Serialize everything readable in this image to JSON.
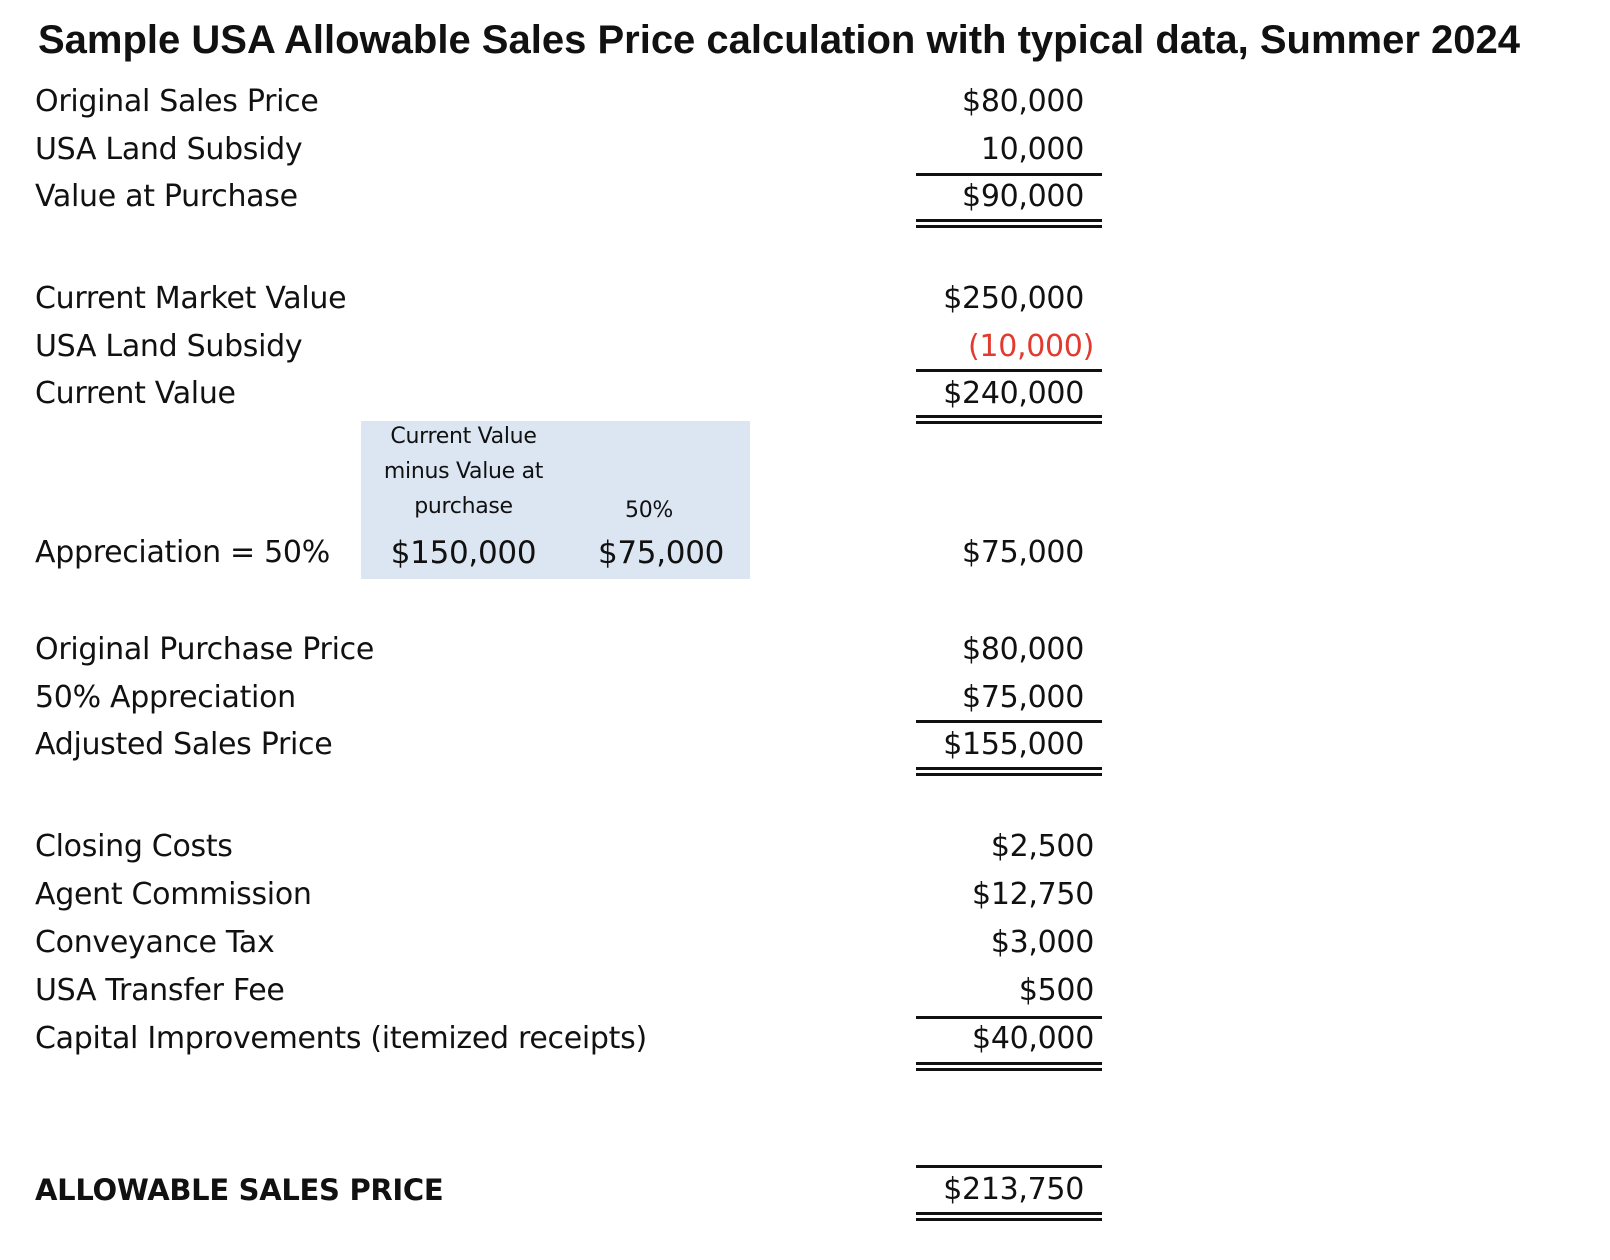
{
  "title": "Sample USA Allowable Sales Price calculation with typical data, Summer 2024",
  "purchase": {
    "original_sales_price": {
      "label": "Original Sales Price",
      "value": "$80,000"
    },
    "land_subsidy": {
      "label": "USA Land Subsidy",
      "value": "10,000"
    },
    "value_at_purchase": {
      "label": "Value at Purchase",
      "value": "$90,000"
    }
  },
  "current": {
    "market_value": {
      "label": "Current Market Value",
      "value": "$250,000"
    },
    "land_subsidy": {
      "label": "USA Land Subsidy",
      "value": "(10,000)"
    },
    "current_value": {
      "label": "Current Value",
      "value": "$240,000"
    }
  },
  "appreciation": {
    "label": "Appreciation = 50%",
    "box": {
      "difference_header": [
        "Current Value",
        "minus Value at",
        "purchase"
      ],
      "difference_value": "$150,000",
      "percent_header": "50%",
      "percent_value": "$75,000"
    },
    "value": "$75,000"
  },
  "adjusted": {
    "original_purchase_price": {
      "label": "Original Purchase Price",
      "value": "$80,000"
    },
    "appreciation_50": {
      "label": "50% Appreciation",
      "value": "$75,000"
    },
    "adjusted_sales_price": {
      "label": "Adjusted Sales Price",
      "value": "$155,000"
    }
  },
  "costs": [
    {
      "label": "Closing Costs",
      "value": "$2,500"
    },
    {
      "label": "Agent Commission",
      "value": "$12,750"
    },
    {
      "label": "Conveyance Tax",
      "value": "$3,000"
    },
    {
      "label": "USA Transfer Fee",
      "value": "$500"
    },
    {
      "label": "Capital Improvements (itemized receipts)",
      "value": "$40,000"
    }
  ],
  "final": {
    "label": "ALLOWABLE SALES PRICE",
    "value": "$213,750"
  },
  "colors": {
    "negative": "#e23a2e",
    "box_background": "#dce6f2"
  }
}
